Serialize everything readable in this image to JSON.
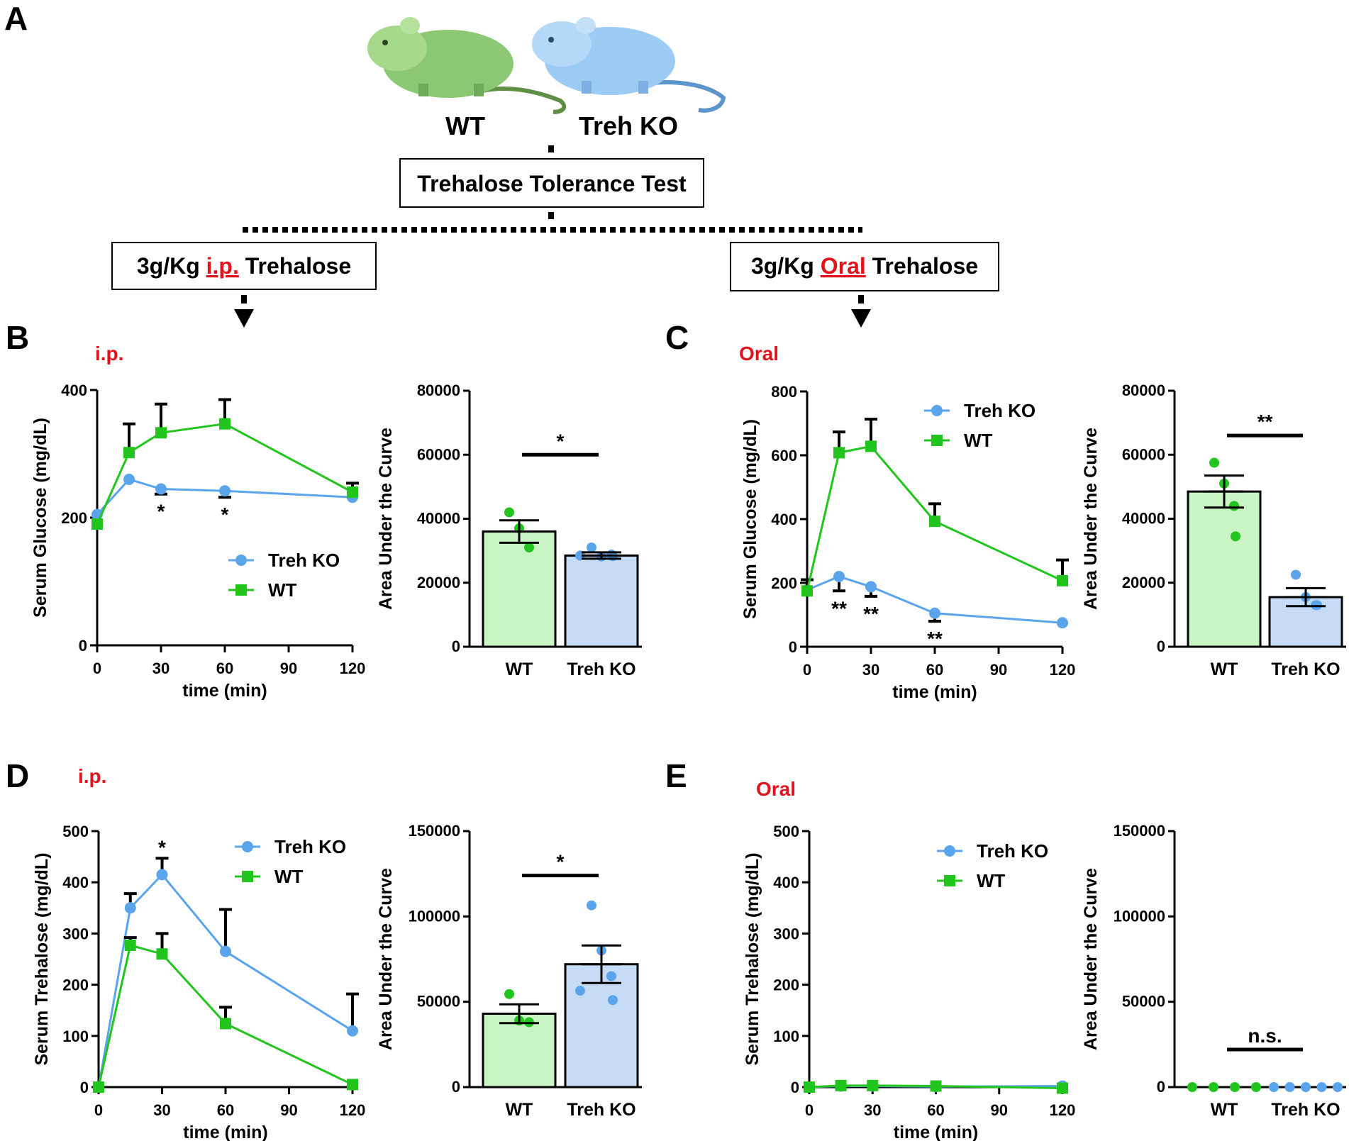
{
  "panel_labels": {
    "a": "A",
    "b": "B",
    "c": "C",
    "d": "D",
    "e": "E"
  },
  "mice": {
    "wt": "WT",
    "ko": "Treh KO"
  },
  "boxes": {
    "test": "Trehalose Tolerance Test",
    "ip": {
      "prefix": "3g/Kg ",
      "route": "i.p.",
      "suffix": " Trehalose"
    },
    "oral": {
      "prefix": "3g/Kg ",
      "route": "Oral",
      "suffix": " Trehalose"
    }
  },
  "colors": {
    "wt": "#22c41e",
    "ko": "#5aa4ec",
    "wt_fill": "#c9f5c4",
    "ko_fill": "#c6dcf6",
    "route_red": "#e0141c"
  },
  "chart_data": [
    {
      "id": "b_line",
      "type": "line",
      "panel": "B",
      "route_label": "i.p.",
      "xlabel": "time (min)",
      "ylabel": "Serum Glucose (mg/dL)",
      "xlim": [
        0,
        120
      ],
      "ylim": [
        0,
        400
      ],
      "x_ticks": [
        "0",
        "30",
        "60",
        "90",
        "120"
      ],
      "y_ticks": [
        "0",
        "200",
        "400"
      ],
      "legend_position": "middle-right",
      "series": [
        {
          "name": "Treh KO",
          "key": "ko",
          "x": [
            0,
            15,
            30,
            60,
            120
          ],
          "values": [
            205,
            260,
            245,
            242,
            232
          ],
          "err": [
            0,
            0,
            8,
            10,
            0
          ]
        },
        {
          "name": "WT",
          "key": "wt",
          "x": [
            0,
            15,
            30,
            60,
            120
          ],
          "values": [
            190,
            302,
            333,
            347,
            240
          ],
          "err": [
            0,
            45,
            45,
            38,
            14
          ]
        }
      ],
      "annotations": [
        {
          "x": 30,
          "text": "*"
        },
        {
          "x": 60,
          "text": "*"
        }
      ]
    },
    {
      "id": "b_auc",
      "type": "bar",
      "panel": "B",
      "ylabel": "Area Under the Curve",
      "categories": [
        "WT",
        "Treh KO"
      ],
      "values": [
        36000,
        28500
      ],
      "err": [
        3500,
        1000
      ],
      "ylim": [
        0,
        80000
      ],
      "y_ticks": [
        "0",
        "20000",
        "40000",
        "60000",
        "80000"
      ],
      "points": [
        [
          42000,
          37000,
          31000
        ],
        [
          31000,
          28200,
          28800,
          28300,
          28500
        ]
      ],
      "significance": "*"
    },
    {
      "id": "c_line",
      "type": "line",
      "panel": "C",
      "route_label": "Oral",
      "xlabel": "time (min)",
      "ylabel": "Serum Glucose (mg/dL)",
      "xlim": [
        0,
        120
      ],
      "ylim": [
        0,
        800
      ],
      "x_ticks": [
        "0",
        "30",
        "60",
        "90",
        "120"
      ],
      "y_ticks": [
        "0",
        "200",
        "400",
        "600",
        "800"
      ],
      "legend_position": "top-right",
      "series": [
        {
          "name": "Treh KO",
          "key": "ko",
          "x": [
            0,
            15,
            30,
            60,
            120
          ],
          "values": [
            178,
            220,
            188,
            105,
            75
          ],
          "err": [
            0,
            45,
            30,
            25,
            0
          ]
        },
        {
          "name": "WT",
          "key": "wt",
          "x": [
            0,
            15,
            30,
            60,
            120
          ],
          "values": [
            175,
            608,
            628,
            393,
            207
          ],
          "err": [
            35,
            65,
            85,
            55,
            65
          ]
        }
      ],
      "annotations": [
        {
          "x": 15,
          "text": "**"
        },
        {
          "x": 30,
          "text": "**"
        },
        {
          "x": 60,
          "text": "**"
        }
      ]
    },
    {
      "id": "c_auc",
      "type": "bar",
      "panel": "C",
      "ylabel": "Area Under the Curve",
      "categories": [
        "WT",
        "Treh KO"
      ],
      "values": [
        48500,
        15500
      ],
      "err": [
        5000,
        2800
      ],
      "ylim": [
        0,
        80000
      ],
      "y_ticks": [
        "0",
        "20000",
        "40000",
        "60000",
        "80000"
      ],
      "points": [
        [
          57500,
          51000,
          44000,
          34500
        ],
        [
          22500,
          15500,
          13000,
          13000
        ]
      ],
      "significance": "**"
    },
    {
      "id": "d_line",
      "type": "line",
      "panel": "D",
      "route_label": "i.p.",
      "xlabel": "time (min)",
      "ylabel": "Serum Trehalose (mg/dL)",
      "xlim": [
        0,
        120
      ],
      "ylim": [
        0,
        500
      ],
      "x_ticks": [
        "0",
        "30",
        "60",
        "90",
        "120"
      ],
      "y_ticks": [
        "0",
        "100",
        "200",
        "300",
        "400",
        "500"
      ],
      "legend_position": "top-right",
      "series": [
        {
          "name": "Treh KO",
          "key": "ko",
          "x": [
            0,
            15,
            30,
            60,
            120
          ],
          "values": [
            0,
            350,
            415,
            265,
            110
          ],
          "err": [
            0,
            28,
            32,
            82,
            72
          ]
        },
        {
          "name": "WT",
          "key": "wt",
          "x": [
            0,
            15,
            30,
            60,
            120
          ],
          "values": [
            0,
            277,
            260,
            124,
            5
          ],
          "err": [
            0,
            15,
            40,
            32,
            0
          ]
        }
      ],
      "annotations": [
        {
          "x": 30,
          "text": "*"
        }
      ]
    },
    {
      "id": "d_auc",
      "type": "bar",
      "panel": "D",
      "ylabel": "Area Under the Curve",
      "categories": [
        "WT",
        "Treh KO"
      ],
      "values": [
        43000,
        72000
      ],
      "err": [
        5500,
        11000
      ],
      "ylim": [
        0,
        150000
      ],
      "y_ticks": [
        "0",
        "50000",
        "100000",
        "150000"
      ],
      "points": [
        [
          54500,
          39000,
          38000
        ],
        [
          106500,
          80000,
          65000,
          51000,
          56500
        ]
      ],
      "significance": "*"
    },
    {
      "id": "e_line",
      "type": "line",
      "panel": "E",
      "route_label": "Oral",
      "xlabel": "time (min)",
      "ylabel": "Serum Trehalose (mg/dL)",
      "xlim": [
        0,
        120
      ],
      "ylim": [
        0,
        500
      ],
      "x_ticks": [
        "0",
        "30",
        "60",
        "90",
        "120"
      ],
      "y_ticks": [
        "0",
        "100",
        "200",
        "300",
        "400",
        "500"
      ],
      "legend_position": "top-right",
      "series": [
        {
          "name": "Treh KO",
          "key": "ko",
          "x": [
            0,
            15,
            30,
            60,
            120
          ],
          "values": [
            0,
            2,
            2,
            1,
            2
          ],
          "err": [
            0,
            0,
            0,
            0,
            0
          ]
        },
        {
          "name": "WT",
          "key": "wt",
          "x": [
            0,
            15,
            30,
            60,
            120
          ],
          "values": [
            0,
            3,
            3,
            2,
            -2
          ],
          "err": [
            0,
            0,
            0,
            0,
            0
          ]
        }
      ],
      "annotations": []
    },
    {
      "id": "e_auc",
      "type": "bar",
      "panel": "E",
      "ylabel": "Area Under the Curve",
      "categories": [
        "WT",
        "Treh KO"
      ],
      "values": [
        0,
        0
      ],
      "err": [
        0,
        0
      ],
      "ylim": [
        0,
        150000
      ],
      "y_ticks": [
        "0",
        "50000",
        "100000",
        "150000"
      ],
      "points": [
        [
          0,
          0,
          0,
          0
        ],
        [
          0,
          0,
          0,
          0,
          0
        ]
      ],
      "significance": "n.s."
    }
  ]
}
